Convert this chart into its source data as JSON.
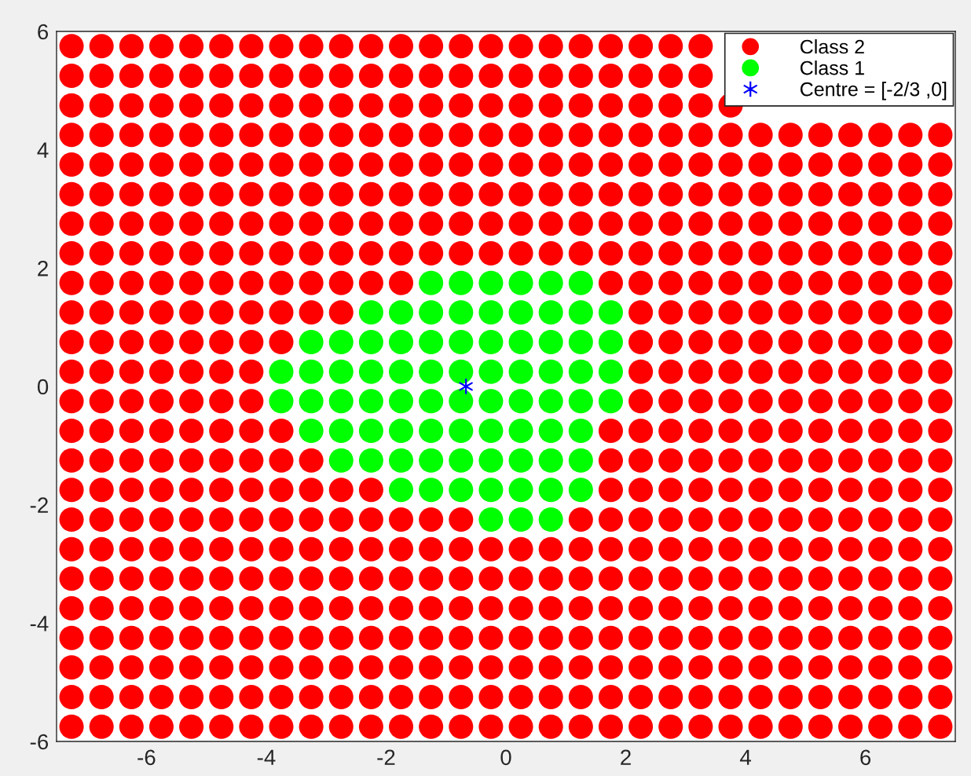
{
  "chart_data": {
    "type": "scatter",
    "xlim": [
      -7.5,
      7.5
    ],
    "ylim": [
      -6,
      6
    ],
    "xticks": [
      -6,
      -4,
      -2,
      0,
      2,
      4,
      6
    ],
    "yticks": [
      -6,
      -4,
      -2,
      0,
      2,
      4,
      6
    ],
    "grid": false,
    "legend": "top right",
    "series": [
      {
        "name": "Class 2",
        "color": "#ff0000",
        "marker": "circle",
        "x": [
          -7.25,
          -6.75,
          -6.25,
          -5.75,
          -5.25,
          -4.75,
          -4.25,
          -3.75,
          -3.25,
          -2.75,
          -2.25,
          -1.75,
          -1.25,
          -0.75,
          -0.25,
          0.25,
          0.75,
          1.25,
          1.75,
          2.25,
          2.75,
          3.25,
          -7.25,
          -6.75,
          -6.25,
          -5.75,
          -5.25,
          -4.75,
          -4.25,
          -3.75,
          -3.25,
          -2.75,
          -2.25,
          -1.75,
          -1.25,
          -0.75,
          -0.25,
          0.25,
          0.75,
          1.25,
          1.75,
          2.25,
          2.75,
          3.25,
          -7.25,
          -6.75,
          -6.25,
          -5.75,
          -5.25,
          -4.75,
          -4.25,
          -3.75,
          -3.25,
          -2.75,
          -2.25,
          -1.75,
          -1.25,
          -0.75,
          -0.25,
          0.25,
          0.75,
          1.25,
          1.75,
          2.25,
          2.75,
          3.25,
          3.75,
          -7.25,
          -6.75,
          -6.25,
          -5.75,
          -5.25,
          -4.75,
          -4.25,
          -3.75,
          -3.25,
          -2.75,
          -2.25,
          -1.75,
          -1.25,
          -0.75,
          -0.25,
          0.25,
          0.75,
          1.25,
          1.75,
          2.25,
          2.75,
          3.25,
          3.75,
          4.25,
          4.75,
          5.25,
          5.75,
          6.25,
          6.75,
          7.25,
          -7.25,
          -6.75,
          -6.25,
          -5.75,
          -5.25,
          -4.75,
          -4.25,
          -3.75,
          -3.25,
          -2.75,
          -2.25,
          -1.75,
          -1.25,
          -0.75,
          -0.25,
          0.25,
          0.75,
          1.25,
          1.75,
          2.25,
          2.75,
          3.25,
          3.75,
          4.25,
          4.75,
          5.25,
          5.75,
          6.25,
          6.75,
          7.25,
          -7.25,
          -6.75,
          -6.25,
          -5.75,
          -5.25,
          -4.75,
          -4.25,
          -3.75,
          -3.25,
          -2.75,
          -2.25,
          -1.75,
          -1.25,
          -0.75,
          -0.25,
          0.25,
          0.75,
          1.25,
          1.75,
          2.25,
          2.75,
          3.25,
          3.75,
          4.25,
          4.75,
          5.25,
          5.75,
          6.25,
          6.75,
          7.25,
          -7.25,
          -6.75,
          -6.25,
          -5.75,
          -5.25,
          -4.75,
          -4.25,
          -3.75,
          -3.25,
          -2.75,
          -2.25,
          -1.75,
          -1.25,
          -0.75,
          -0.25,
          0.25,
          0.75,
          1.25,
          1.75,
          2.25,
          2.75,
          3.25,
          3.75,
          4.25,
          4.75,
          5.25,
          5.75,
          6.25,
          6.75,
          7.25,
          -7.25,
          -6.75,
          -6.25,
          -5.75,
          -5.25,
          -4.75,
          -4.25,
          -3.75,
          -3.25,
          -2.75,
          -2.25,
          -1.75,
          -1.25,
          -0.75,
          -0.25,
          0.25,
          0.75,
          1.25,
          1.75,
          2.25,
          2.75,
          3.25,
          3.75,
          4.25,
          4.75,
          5.25,
          5.75,
          6.25,
          6.75,
          7.25,
          -7.25,
          -6.75,
          -6.25,
          -5.75,
          -5.25,
          -4.75,
          -4.25,
          -3.75,
          -3.25,
          -2.75,
          -2.25,
          -1.75,
          1.75,
          2.25,
          2.75,
          3.25,
          3.75,
          4.25,
          4.75,
          5.25,
          5.75,
          6.25,
          6.75,
          7.25,
          -7.25,
          -6.75,
          -6.25,
          -5.75,
          -5.25,
          -4.75,
          -4.25,
          -3.75,
          -3.25,
          -2.75,
          2.25,
          2.75,
          3.25,
          3.75,
          4.25,
          4.75,
          5.25,
          5.75,
          6.25,
          6.75,
          7.25,
          -7.25,
          -6.75,
          -6.25,
          -5.75,
          -5.25,
          -4.75,
          -4.25,
          -3.75,
          2.25,
          2.75,
          3.25,
          3.75,
          4.25,
          4.75,
          5.25,
          5.75,
          6.25,
          6.75,
          7.25,
          -7.25,
          -6.75,
          -6.25,
          -5.75,
          -5.25,
          -4.75,
          -4.25,
          2.25,
          2.75,
          3.25,
          3.75,
          4.25,
          4.75,
          5.25,
          5.75,
          6.25,
          6.75,
          7.25,
          -7.25,
          -6.75,
          -6.25,
          -5.75,
          -5.25,
          -4.75,
          -4.25,
          2.25,
          2.75,
          3.25,
          3.75,
          4.25,
          4.75,
          5.25,
          5.75,
          6.25,
          6.75,
          7.25,
          -7.25,
          -6.75,
          -6.25,
          -5.75,
          -5.25,
          -4.75,
          -4.25,
          -3.75,
          1.75,
          2.25,
          2.75,
          3.25,
          3.75,
          4.25,
          4.75,
          5.25,
          5.75,
          6.25,
          6.75,
          7.25,
          -7.25,
          -6.75,
          -6.25,
          -5.75,
          -5.25,
          -4.75,
          -4.25,
          -3.75,
          -3.25,
          1.75,
          2.25,
          2.75,
          3.25,
          3.75,
          4.25,
          4.75,
          5.25,
          5.75,
          6.25,
          6.75,
          7.25,
          -7.25,
          -6.75,
          -6.25,
          -5.75,
          -5.25,
          -4.75,
          -4.25,
          -3.75,
          -3.25,
          -2.75,
          -2.25,
          1.75,
          2.25,
          2.75,
          3.25,
          3.75,
          4.25,
          4.75,
          5.25,
          5.75,
          6.25,
          6.75,
          7.25,
          -7.25,
          -6.75,
          -6.25,
          -5.75,
          -5.25,
          -4.75,
          -4.25,
          -3.75,
          -3.25,
          -2.75,
          -2.25,
          -1.75,
          -1.25,
          -0.75,
          1.25,
          1.75,
          2.25,
          2.75,
          3.25,
          3.75,
          4.25,
          4.75,
          5.25,
          5.75,
          6.25,
          6.75,
          7.25,
          -7.25,
          -6.75,
          -6.25,
          -5.75,
          -5.25,
          -4.75,
          -4.25,
          -3.75,
          -3.25,
          -2.75,
          -2.25,
          -1.75,
          -1.25,
          -0.75,
          -0.25,
          0.25,
          0.75,
          1.25,
          1.75,
          2.25,
          2.75,
          3.25,
          3.75,
          4.25,
          4.75,
          5.25,
          5.75,
          6.25,
          6.75,
          7.25,
          -7.25,
          -6.75,
          -6.25,
          -5.75,
          -5.25,
          -4.75,
          -4.25,
          -3.75,
          -3.25,
          -2.75,
          -2.25,
          -1.75,
          -1.25,
          -0.75,
          -0.25,
          0.25,
          0.75,
          1.25,
          1.75,
          2.25,
          2.75,
          3.25,
          3.75,
          4.25,
          4.75,
          5.25,
          5.75,
          6.25,
          6.75,
          7.25,
          -7.25,
          -6.75,
          -6.25,
          -5.75,
          -5.25,
          -4.75,
          -4.25,
          -3.75,
          -3.25,
          -2.75,
          -2.25,
          -1.75,
          -1.25,
          -0.75,
          -0.25,
          0.25,
          0.75,
          1.25,
          1.75,
          2.25,
          2.75,
          3.25,
          3.75,
          4.25,
          4.75,
          5.25,
          5.75,
          6.25,
          6.75,
          7.25,
          -7.25,
          -6.75,
          -6.25,
          -5.75,
          -5.25,
          -4.75,
          -4.25,
          -3.75,
          -3.25,
          -2.75,
          -2.25,
          -1.75,
          -1.25,
          -0.75,
          -0.25,
          0.25,
          0.75,
          1.25,
          1.75,
          2.25,
          2.75,
          3.25,
          3.75,
          4.25,
          4.75,
          5.25,
          5.75,
          6.25,
          6.75,
          7.25,
          -7.25,
          -6.75,
          -6.25,
          -5.75,
          -5.25,
          -4.75,
          -4.25,
          -3.75,
          -3.25,
          -2.75,
          -2.25,
          -1.75,
          -1.25,
          -0.75,
          -0.25,
          0.25,
          0.75,
          1.25,
          1.75,
          2.25,
          2.75,
          3.25,
          3.75,
          4.25,
          4.75,
          5.25,
          5.75,
          6.25,
          6.75,
          7.25,
          -7.25,
          -6.75,
          -6.25,
          -5.75,
          -5.25,
          -4.75,
          -4.25,
          -3.75,
          -3.25,
          -2.75,
          -2.25,
          -1.75,
          -1.25,
          -0.75,
          -0.25,
          0.25,
          0.75,
          1.25,
          1.75,
          2.25,
          2.75,
          3.25,
          3.75,
          4.25,
          4.75,
          5.25,
          5.75,
          6.25,
          6.75,
          7.25,
          -7.25,
          -6.75,
          -6.25,
          -5.75,
          -5.25,
          -4.75,
          -4.25,
          -3.75,
          -3.25,
          -2.75,
          -2.25,
          -1.75,
          -1.25,
          -0.75,
          -0.25,
          0.25,
          0.75,
          1.25,
          1.75,
          2.25,
          2.75,
          3.25,
          3.75,
          4.25,
          4.75,
          5.25,
          5.75,
          6.25,
          6.75,
          7.25
        ],
        "values": [
          5.75,
          5.75,
          5.75,
          5.75,
          5.75,
          5.75,
          5.75,
          5.75,
          5.75,
          5.75,
          5.75,
          5.75,
          5.75,
          5.75,
          5.75,
          5.75,
          5.75,
          5.75,
          5.75,
          5.75,
          5.75,
          5.75,
          5.25,
          5.25,
          5.25,
          5.25,
          5.25,
          5.25,
          5.25,
          5.25,
          5.25,
          5.25,
          5.25,
          5.25,
          5.25,
          5.25,
          5.25,
          5.25,
          5.25,
          5.25,
          5.25,
          5.25,
          5.25,
          5.25,
          4.75,
          4.75,
          4.75,
          4.75,
          4.75,
          4.75,
          4.75,
          4.75,
          4.75,
          4.75,
          4.75,
          4.75,
          4.75,
          4.75,
          4.75,
          4.75,
          4.75,
          4.75,
          4.75,
          4.75,
          4.75,
          4.75,
          4.75,
          4.25,
          4.25,
          4.25,
          4.25,
          4.25,
          4.25,
          4.25,
          4.25,
          4.25,
          4.25,
          4.25,
          4.25,
          4.25,
          4.25,
          4.25,
          4.25,
          4.25,
          4.25,
          4.25,
          4.25,
          4.25,
          4.25,
          4.25,
          4.25,
          4.25,
          4.25,
          4.25,
          4.25,
          4.25,
          4.25,
          3.75,
          3.75,
          3.75,
          3.75,
          3.75,
          3.75,
          3.75,
          3.75,
          3.75,
          3.75,
          3.75,
          3.75,
          3.75,
          3.75,
          3.75,
          3.75,
          3.75,
          3.75,
          3.75,
          3.75,
          3.75,
          3.75,
          3.75,
          3.75,
          3.75,
          3.75,
          3.75,
          3.75,
          3.75,
          3.75,
          3.25,
          3.25,
          3.25,
          3.25,
          3.25,
          3.25,
          3.25,
          3.25,
          3.25,
          3.25,
          3.25,
          3.25,
          3.25,
          3.25,
          3.25,
          3.25,
          3.25,
          3.25,
          3.25,
          3.25,
          3.25,
          3.25,
          3.25,
          3.25,
          3.25,
          3.25,
          3.25,
          3.25,
          3.25,
          3.25,
          2.75,
          2.75,
          2.75,
          2.75,
          2.75,
          2.75,
          2.75,
          2.75,
          2.75,
          2.75,
          2.75,
          2.75,
          2.75,
          2.75,
          2.75,
          2.75,
          2.75,
          2.75,
          2.75,
          2.75,
          2.75,
          2.75,
          2.75,
          2.75,
          2.75,
          2.75,
          2.75,
          2.75,
          2.75,
          2.75,
          2.25,
          2.25,
          2.25,
          2.25,
          2.25,
          2.25,
          2.25,
          2.25,
          2.25,
          2.25,
          2.25,
          2.25,
          2.25,
          2.25,
          2.25,
          2.25,
          2.25,
          2.25,
          2.25,
          2.25,
          2.25,
          2.25,
          2.25,
          2.25,
          2.25,
          2.25,
          2.25,
          2.25,
          2.25,
          2.25,
          1.75,
          1.75,
          1.75,
          1.75,
          1.75,
          1.75,
          1.75,
          1.75,
          1.75,
          1.75,
          1.75,
          1.75,
          1.75,
          1.75,
          1.75,
          1.75,
          1.75,
          1.75,
          1.75,
          1.75,
          1.75,
          1.75,
          1.75,
          1.75,
          1.25,
          1.25,
          1.25,
          1.25,
          1.25,
          1.25,
          1.25,
          1.25,
          1.25,
          1.25,
          1.25,
          1.25,
          1.25,
          1.25,
          1.25,
          1.25,
          1.25,
          1.25,
          1.25,
          1.25,
          1.25,
          0.75,
          0.75,
          0.75,
          0.75,
          0.75,
          0.75,
          0.75,
          0.75,
          0.75,
          0.75,
          0.75,
          0.75,
          0.75,
          0.75,
          0.75,
          0.75,
          0.75,
          0.75,
          0.75,
          0.25,
          0.25,
          0.25,
          0.25,
          0.25,
          0.25,
          0.25,
          0.25,
          0.25,
          0.25,
          0.25,
          0.25,
          0.25,
          0.25,
          0.25,
          0.25,
          0.25,
          0.25,
          -0.25,
          -0.25,
          -0.25,
          -0.25,
          -0.25,
          -0.25,
          -0.25,
          -0.25,
          -0.25,
          -0.25,
          -0.25,
          -0.25,
          -0.25,
          -0.25,
          -0.25,
          -0.25,
          -0.25,
          -0.25,
          -0.75,
          -0.75,
          -0.75,
          -0.75,
          -0.75,
          -0.75,
          -0.75,
          -0.75,
          -0.75,
          -0.75,
          -0.75,
          -0.75,
          -0.75,
          -0.75,
          -0.75,
          -0.75,
          -0.75,
          -0.75,
          -0.75,
          -0.75,
          -1.25,
          -1.25,
          -1.25,
          -1.25,
          -1.25,
          -1.25,
          -1.25,
          -1.25,
          -1.25,
          -1.25,
          -1.25,
          -1.25,
          -1.25,
          -1.25,
          -1.25,
          -1.25,
          -1.25,
          -1.25,
          -1.25,
          -1.25,
          -1.25,
          -1.75,
          -1.75,
          -1.75,
          -1.75,
          -1.75,
          -1.75,
          -1.75,
          -1.75,
          -1.75,
          -1.75,
          -1.75,
          -1.75,
          -1.75,
          -1.75,
          -1.75,
          -1.75,
          -1.75,
          -1.75,
          -1.75,
          -1.75,
          -1.75,
          -1.75,
          -1.75,
          -2.25,
          -2.25,
          -2.25,
          -2.25,
          -2.25,
          -2.25,
          -2.25,
          -2.25,
          -2.25,
          -2.25,
          -2.25,
          -2.25,
          -2.25,
          -2.25,
          -2.25,
          -2.25,
          -2.25,
          -2.25,
          -2.25,
          -2.25,
          -2.25,
          -2.25,
          -2.25,
          -2.25,
          -2.25,
          -2.25,
          -2.25,
          -2.75,
          -2.75,
          -2.75,
          -2.75,
          -2.75,
          -2.75,
          -2.75,
          -2.75,
          -2.75,
          -2.75,
          -2.75,
          -2.75,
          -2.75,
          -2.75,
          -2.75,
          -2.75,
          -2.75,
          -2.75,
          -2.75,
          -2.75,
          -2.75,
          -2.75,
          -2.75,
          -2.75,
          -2.75,
          -2.75,
          -2.75,
          -2.75,
          -2.75,
          -2.75,
          -3.25,
          -3.25,
          -3.25,
          -3.25,
          -3.25,
          -3.25,
          -3.25,
          -3.25,
          -3.25,
          -3.25,
          -3.25,
          -3.25,
          -3.25,
          -3.25,
          -3.25,
          -3.25,
          -3.25,
          -3.25,
          -3.25,
          -3.25,
          -3.25,
          -3.25,
          -3.25,
          -3.25,
          -3.25,
          -3.25,
          -3.25,
          -3.25,
          -3.25,
          -3.25,
          -3.75,
          -3.75,
          -3.75,
          -3.75,
          -3.75,
          -3.75,
          -3.75,
          -3.75,
          -3.75,
          -3.75,
          -3.75,
          -3.75,
          -3.75,
          -3.75,
          -3.75,
          -3.75,
          -3.75,
          -3.75,
          -3.75,
          -3.75,
          -3.75,
          -3.75,
          -3.75,
          -3.75,
          -3.75,
          -3.75,
          -3.75,
          -3.75,
          -3.75,
          -3.75,
          -4.25,
          -4.25,
          -4.25,
          -4.25,
          -4.25,
          -4.25,
          -4.25,
          -4.25,
          -4.25,
          -4.25,
          -4.25,
          -4.25,
          -4.25,
          -4.25,
          -4.25,
          -4.25,
          -4.25,
          -4.25,
          -4.25,
          -4.25,
          -4.25,
          -4.25,
          -4.25,
          -4.25,
          -4.25,
          -4.25,
          -4.25,
          -4.25,
          -4.25,
          -4.25,
          -4.75,
          -4.75,
          -4.75,
          -4.75,
          -4.75,
          -4.75,
          -4.75,
          -4.75,
          -4.75,
          -4.75,
          -4.75,
          -4.75,
          -4.75,
          -4.75,
          -4.75,
          -4.75,
          -4.75,
          -4.75,
          -4.75,
          -4.75,
          -4.75,
          -4.75,
          -4.75,
          -4.75,
          -4.75,
          -4.75,
          -4.75,
          -4.75,
          -4.75,
          -4.75,
          -5.25,
          -5.25,
          -5.25,
          -5.25,
          -5.25,
          -5.25,
          -5.25,
          -5.25,
          -5.25,
          -5.25,
          -5.25,
          -5.25,
          -5.25,
          -5.25,
          -5.25,
          -5.25,
          -5.25,
          -5.25,
          -5.25,
          -5.25,
          -5.25,
          -5.25,
          -5.25,
          -5.25,
          -5.25,
          -5.25,
          -5.25,
          -5.25,
          -5.25,
          -5.25,
          -5.75,
          -5.75,
          -5.75,
          -5.75,
          -5.75,
          -5.75,
          -5.75,
          -5.75,
          -5.75,
          -5.75,
          -5.75,
          -5.75,
          -5.75,
          -5.75,
          -5.75,
          -5.75,
          -5.75,
          -5.75,
          -5.75,
          -5.75,
          -5.75,
          -5.75,
          -5.75,
          -5.75,
          -5.75,
          -5.75,
          -5.75,
          -5.75,
          -5.75,
          -5.75
        ]
      },
      {
        "name": "Class 1",
        "color": "#00ff00",
        "marker": "circle",
        "x": [
          -1.25,
          -0.75,
          -0.25,
          0.25,
          0.75,
          1.25,
          -2.25,
          -1.75,
          -1.25,
          -0.75,
          -0.25,
          0.25,
          0.75,
          1.25,
          1.75,
          -3.25,
          -2.75,
          -2.25,
          -1.75,
          -1.25,
          -0.75,
          -0.25,
          0.25,
          0.75,
          1.25,
          1.75,
          -3.75,
          -3.25,
          -2.75,
          -2.25,
          -1.75,
          -1.25,
          -0.75,
          -0.25,
          0.25,
          0.75,
          1.25,
          1.75,
          -3.75,
          -3.25,
          -2.75,
          -2.25,
          -1.75,
          -1.25,
          -0.75,
          -0.25,
          0.25,
          0.75,
          1.25,
          1.75,
          -3.25,
          -2.75,
          -2.25,
          -1.75,
          -1.25,
          -0.75,
          -0.25,
          0.25,
          0.75,
          1.25,
          -2.75,
          -2.25,
          -1.75,
          -1.25,
          -0.75,
          -0.25,
          0.25,
          0.75,
          1.25,
          -1.75,
          -1.25,
          -0.75,
          -0.25,
          0.25,
          0.75,
          1.25,
          -0.25,
          0.25,
          0.75
        ],
        "values": [
          1.75,
          1.75,
          1.75,
          1.75,
          1.75,
          1.75,
          1.25,
          1.25,
          1.25,
          1.25,
          1.25,
          1.25,
          1.25,
          1.25,
          1.25,
          0.75,
          0.75,
          0.75,
          0.75,
          0.75,
          0.75,
          0.75,
          0.75,
          0.75,
          0.75,
          0.75,
          0.25,
          0.25,
          0.25,
          0.25,
          0.25,
          0.25,
          0.25,
          0.25,
          0.25,
          0.25,
          0.25,
          0.25,
          -0.25,
          -0.25,
          -0.25,
          -0.25,
          -0.25,
          -0.25,
          -0.25,
          -0.25,
          -0.25,
          -0.25,
          -0.25,
          -0.25,
          -0.75,
          -0.75,
          -0.75,
          -0.75,
          -0.75,
          -0.75,
          -0.75,
          -0.75,
          -0.75,
          -0.75,
          -1.25,
          -1.25,
          -1.25,
          -1.25,
          -1.25,
          -1.25,
          -1.25,
          -1.25,
          -1.25,
          -1.75,
          -1.75,
          -1.75,
          -1.75,
          -1.75,
          -1.75,
          -1.75,
          -2.25,
          -2.25,
          -2.25
        ]
      },
      {
        "name": "Centre = [-2/3 ,0]",
        "color": "#0000ff",
        "marker": "cross",
        "x": [
          -0.6667
        ],
        "values": [
          0
        ]
      }
    ]
  }
}
